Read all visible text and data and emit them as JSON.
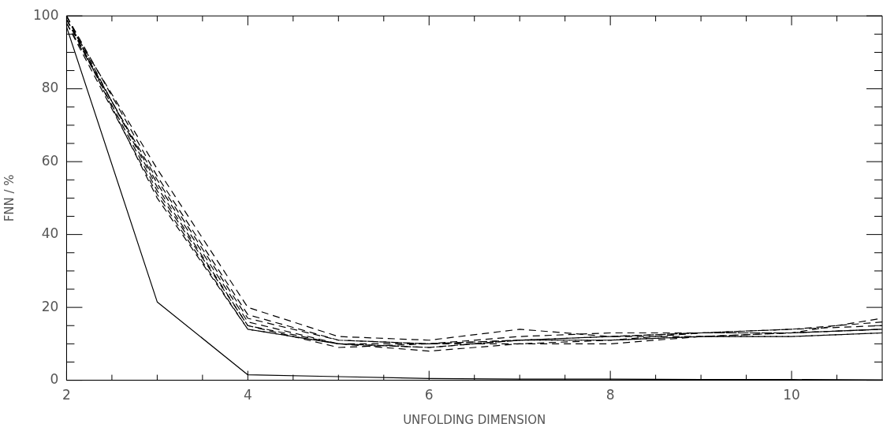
{
  "chart_data": {
    "type": "line",
    "xlabel": "UNFOLDING DIMENSION",
    "ylabel": "FNN / %",
    "x": [
      2,
      3,
      4,
      5,
      6,
      7,
      8,
      9,
      10,
      11
    ],
    "xlim": [
      2,
      11
    ],
    "ylim": [
      0,
      100
    ],
    "xticks": [
      2,
      {
        "value": 2.5,
        "label": null
      },
      {
        "value": 3,
        "label": null
      },
      {
        "value": 3.5,
        "label": null
      },
      4,
      {
        "value": 4.5,
        "label": null
      },
      {
        "value": 5,
        "label": null
      },
      {
        "value": 5.5,
        "label": null
      },
      6,
      {
        "value": 6.5,
        "label": null
      },
      {
        "value": 7,
        "label": null
      },
      {
        "value": 7.5,
        "label": null
      },
      8,
      {
        "value": 8.5,
        "label": null
      },
      {
        "value": 9,
        "label": null
      },
      {
        "value": 9.5,
        "label": null
      },
      10,
      {
        "value": 10.5,
        "label": null
      }
    ],
    "yticks": [
      0,
      {
        "value": 5,
        "label": null
      },
      {
        "value": 10,
        "label": null
      },
      {
        "value": 15,
        "label": null
      },
      20,
      {
        "value": 25,
        "label": null
      },
      {
        "value": 30,
        "label": null
      },
      {
        "value": 35,
        "label": null
      },
      40,
      {
        "value": 45,
        "label": null
      },
      {
        "value": 50,
        "label": null
      },
      {
        "value": 55,
        "label": null
      },
      60,
      {
        "value": 65,
        "label": null
      },
      {
        "value": 70,
        "label": null
      },
      {
        "value": 75,
        "label": null
      },
      80,
      {
        "value": 85,
        "label": null
      },
      {
        "value": 90,
        "label": null
      },
      {
        "value": 95,
        "label": null
      },
      100
    ],
    "grid": false,
    "legend": false,
    "marker": "none",
    "series": [
      {
        "color": "#000000",
        "line_style": "solid",
        "values": [
          97,
          21.5,
          1.5,
          1,
          0.5,
          0.3,
          0.3,
          0.2,
          0.2,
          0.1
        ]
      },
      {
        "color": "#000000",
        "line_style": "dashed",
        "values": [
          99,
          58,
          20,
          12,
          11,
          14,
          12,
          13,
          13,
          17
        ]
      },
      {
        "color": "#000000",
        "line_style": "dashed",
        "values": [
          100,
          56,
          18,
          11,
          10,
          12,
          13,
          13,
          14,
          16
        ]
      },
      {
        "color": "#000000",
        "line_style": "dashed",
        "values": [
          98,
          55,
          17,
          11,
          10,
          11,
          12,
          13,
          14,
          15
        ]
      },
      {
        "color": "#000000",
        "line_style": "dashed",
        "values": [
          99,
          54,
          16,
          10,
          9,
          11,
          12,
          12,
          13,
          14
        ]
      },
      {
        "color": "#000000",
        "line_style": "dashed",
        "values": [
          100,
          53,
          15,
          10,
          10,
          10,
          11,
          13,
          13,
          14
        ]
      },
      {
        "color": "#000000",
        "line_style": "dashed",
        "values": [
          99,
          52,
          15,
          9,
          10,
          11,
          11,
          12,
          12,
          13
        ]
      },
      {
        "color": "#000000",
        "line_style": "dashed",
        "values": [
          98,
          51,
          14,
          10,
          8,
          10,
          10,
          12,
          13,
          14
        ]
      },
      {
        "color": "#000000",
        "line_style": "dashed",
        "values": [
          100,
          50,
          14,
          10,
          9,
          11,
          11,
          12,
          12,
          13
        ]
      }
    ]
  }
}
